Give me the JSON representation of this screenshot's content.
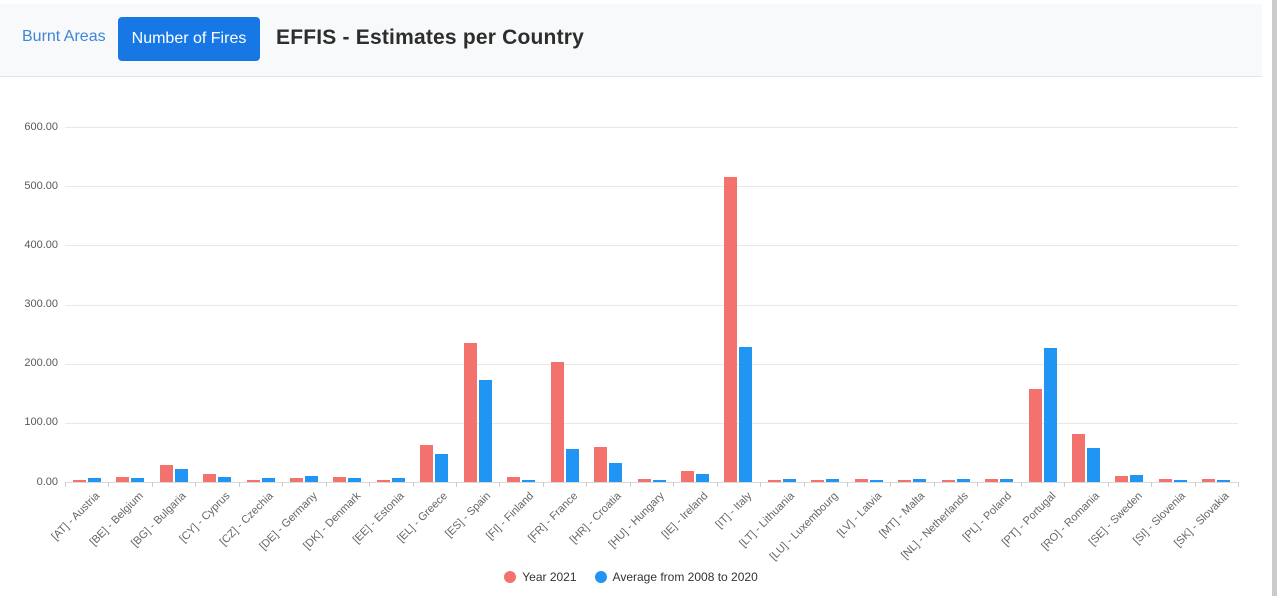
{
  "header": {
    "tab_burnt_areas": "Burnt Areas",
    "tab_number_of_fires": "Number of Fires",
    "title": "EFFIS - Estimates per Country"
  },
  "toolbar": {
    "icons": [
      {
        "name": "download-icon",
        "color": "#47545e"
      },
      {
        "name": "line-chart-red-icon",
        "color": "#f4726d"
      },
      {
        "name": "line-chart-blue-icon",
        "color": "#2095f3"
      }
    ]
  },
  "chart_data": {
    "type": "bar",
    "title": "EFFIS - Estimates per Country",
    "categories": [
      "[AT] - Austria",
      "[BE] - Belgium",
      "[BG] - Bulgaria",
      "[CY] - Cyprus",
      "[CZ] - Czechia",
      "[DE] - Germany",
      "[DK] - Denmark",
      "[EE] - Estonia",
      "[EL] - Greece",
      "[ES] - Spain",
      "[FI] - Finland",
      "[FR] - France",
      "[HR] - Croatia",
      "[HU] - Hungary",
      "[IE] - Ireland",
      "[IT] - Italy",
      "[LT] - Lithuania",
      "[LU] - Luxembourg",
      "[LV] - Latvia",
      "[MT] - Malta",
      "[NL] - Netherlands",
      "[PL] - Poland",
      "[PT] - Portugal",
      "[RO] - Romania",
      "[SE] - Sweden",
      "[SI] - Slovenia",
      "[SK] - Slovakia"
    ],
    "series": [
      {
        "name": "Year 2021",
        "color": "#f4726d",
        "values": [
          4,
          8,
          28,
          13,
          4,
          7,
          9,
          4,
          62,
          235,
          8,
          202,
          60,
          5,
          19,
          515,
          3,
          3,
          5,
          3,
          3,
          5,
          158,
          81,
          10,
          5,
          5
        ]
      },
      {
        "name": "Average from 2008 to 2020",
        "color": "#2095f3",
        "values": [
          7,
          7,
          22,
          8,
          6,
          10,
          6,
          6,
          48,
          172,
          4,
          56,
          32,
          4,
          13,
          228,
          5,
          5,
          4,
          5,
          5,
          5,
          226,
          58,
          11,
          4,
          3
        ]
      }
    ],
    "ylim": [
      0,
      600
    ],
    "yticks": [
      "600.00",
      "500.00",
      "400.00",
      "300.00",
      "200.00",
      "100.00",
      "0.00"
    ],
    "xlabel": "",
    "ylabel": "",
    "grid": true,
    "legend_position": "bottom"
  }
}
